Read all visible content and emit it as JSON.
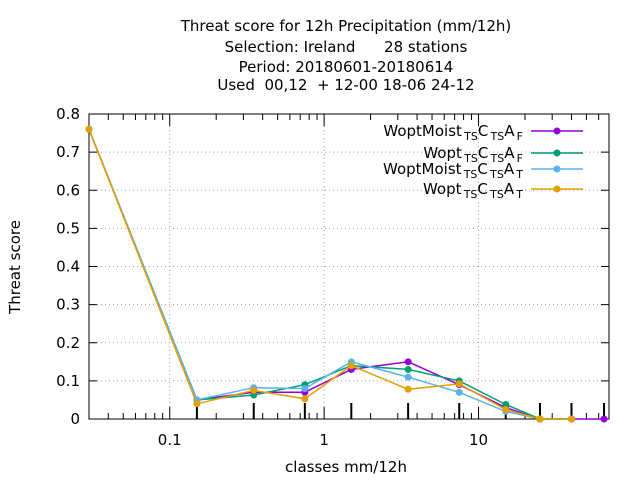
{
  "chart_data": {
    "type": "line",
    "title": [
      "Threat score  for 12h Precipitation (mm/12h)",
      "Selection: Ireland      28 stations",
      "Period: 20180601-20180614",
      "Used  00,12  + 12-00 18-06 24-12"
    ],
    "xlabel": "classes mm/12h",
    "ylabel": "Threat score",
    "xscale": "log",
    "xlim": [
      0.03,
      70
    ],
    "ylim": [
      0,
      0.8
    ],
    "xticks": [
      {
        "value": 0.1,
        "label": "0.1"
      },
      {
        "value": 1,
        "label": "1"
      },
      {
        "value": 10,
        "label": "10"
      }
    ],
    "yticks": [
      {
        "value": 0,
        "label": "0"
      },
      {
        "value": 0.1,
        "label": "0.1"
      },
      {
        "value": 0.2,
        "label": "0.2"
      },
      {
        "value": 0.3,
        "label": "0.3"
      },
      {
        "value": 0.4,
        "label": "0.4"
      },
      {
        "value": 0.5,
        "label": "0.5"
      },
      {
        "value": 0.6,
        "label": "0.6"
      },
      {
        "value": 0.7,
        "label": "0.7"
      },
      {
        "value": 0.8,
        "label": "0.8"
      }
    ],
    "grid": true,
    "legend_position": "top-right",
    "x": [
      0.03,
      0.15,
      0.35,
      0.75,
      1.5,
      3.5,
      7.5,
      15,
      25,
      40,
      65
    ],
    "series": [
      {
        "name": "WoptMoist",
        "name_parts": [
          [
            "WoptMoist",
            ""
          ],
          [
            "TS",
            "sub"
          ],
          [
            "C",
            ""
          ],
          [
            "TS",
            "sub"
          ],
          [
            "A",
            ""
          ],
          [
            "F",
            "sub"
          ]
        ],
        "color": "#9400d3",
        "values": [
          0.76,
          0.05,
          0.07,
          0.07,
          0.13,
          0.15,
          0.09,
          0.03,
          0.0,
          0.0,
          0.0
        ]
      },
      {
        "name": "Wopt",
        "name_parts": [
          [
            "Wopt",
            ""
          ],
          [
            "TS",
            "sub"
          ],
          [
            "C",
            ""
          ],
          [
            "TS",
            "sub"
          ],
          [
            "A",
            ""
          ],
          [
            "F",
            "sub"
          ]
        ],
        "color": "#009e73",
        "values": [
          0.76,
          0.05,
          0.063,
          0.09,
          0.14,
          0.13,
          0.1,
          0.038,
          0.0,
          0.0,
          null
        ]
      },
      {
        "name": "WoptMoist",
        "name_parts": [
          [
            "WoptMoist",
            ""
          ],
          [
            "TS",
            "sub"
          ],
          [
            "C",
            ""
          ],
          [
            "TS",
            "sub"
          ],
          [
            "A",
            ""
          ],
          [
            "T",
            "sub"
          ]
        ],
        "color": "#56b4e9",
        "values": [
          0.76,
          0.05,
          0.082,
          0.08,
          0.15,
          0.11,
          0.07,
          0.02,
          0.0,
          0.0,
          null
        ]
      },
      {
        "name": "Wopt",
        "name_parts": [
          [
            "Wopt",
            ""
          ],
          [
            "TS",
            "sub"
          ],
          [
            "C",
            ""
          ],
          [
            "TS",
            "sub"
          ],
          [
            "A",
            ""
          ],
          [
            "T",
            "sub"
          ]
        ],
        "color": "#e69f00",
        "values": [
          0.76,
          0.04,
          0.075,
          0.053,
          0.14,
          0.078,
          0.092,
          0.025,
          0.0,
          0.0,
          null
        ]
      }
    ]
  }
}
